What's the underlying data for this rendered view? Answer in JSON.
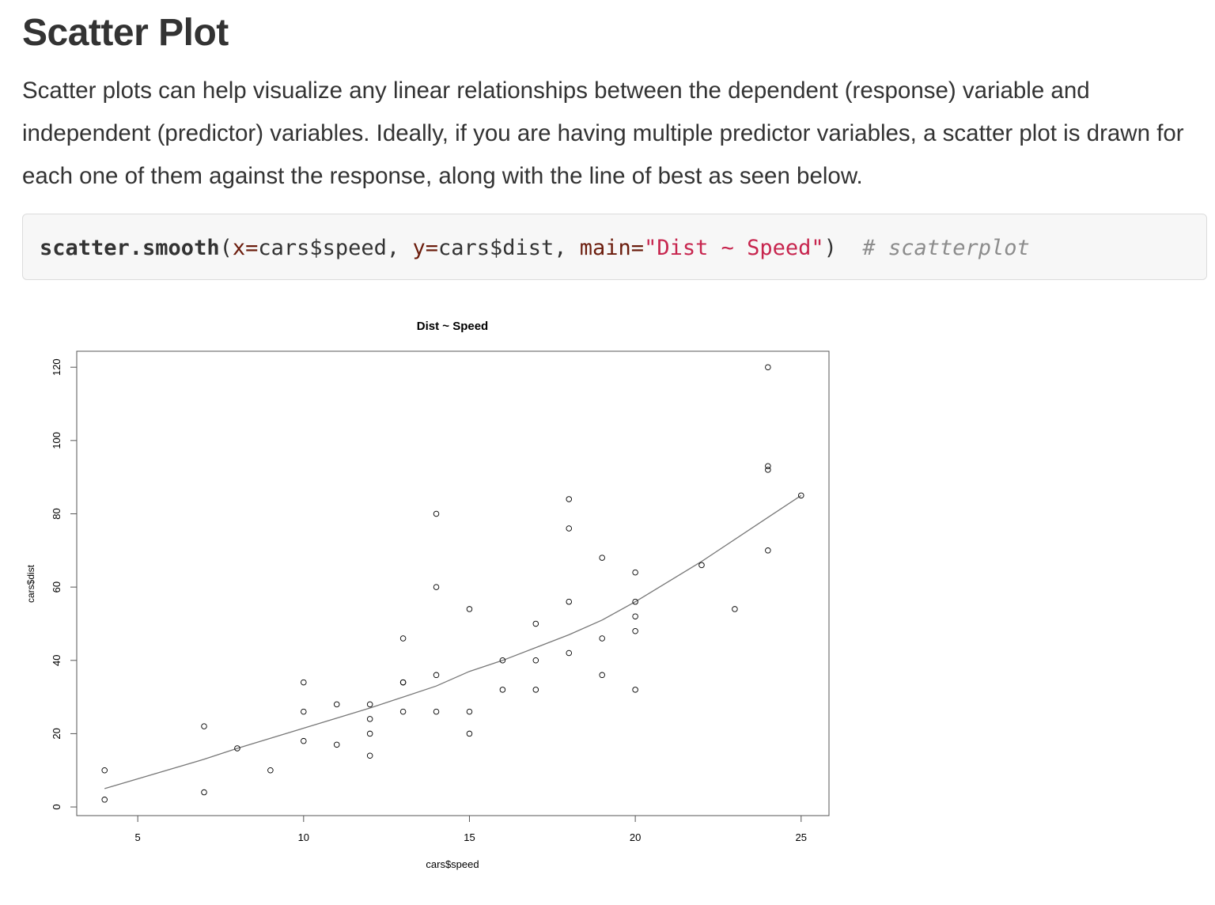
{
  "page": {
    "title": "Scatter Plot",
    "intro": "Scatter plots can help visualize any linear relationships between the dependent (response) variable and independent (predictor) variables. Ideally, if you are having multiple predictor variables, a scatter plot is drawn for each one of them against the response, along with the line of best as seen below."
  },
  "code": {
    "function": "scatter.smooth",
    "open_paren": "(",
    "arg_x_name": "x=",
    "arg_x_value": "cars$speed",
    "sep1": ", ",
    "arg_y_name": "y=",
    "arg_y_value": "cars$dist",
    "sep2": ", ",
    "arg_main_name": "main=",
    "arg_main_value": "\"Dist ~ Speed\"",
    "close_paren": ")",
    "gap": "  ",
    "comment": "# scatterplot"
  },
  "colors": {
    "code_background": "#f7f7f7",
    "code_keyword": "#6b1c0c",
    "code_string": "#c7254e",
    "code_comment": "#8c8c8c",
    "point_stroke": "#000000",
    "smooth_line": "#777777"
  },
  "chart_data": {
    "type": "scatter",
    "title": "Dist ~ Speed",
    "xlabel": "cars$speed",
    "ylabel": "cars$dist",
    "xlim": [
      3.16,
      25.84
    ],
    "ylim": [
      -2.36,
      124.36
    ],
    "xticks": [
      5,
      10,
      15,
      20,
      25
    ],
    "yticks": [
      0,
      20,
      40,
      60,
      80,
      100,
      120
    ],
    "grid": false,
    "points": {
      "x": [
        4,
        4,
        7,
        7,
        8,
        9,
        10,
        10,
        10,
        11,
        11,
        12,
        12,
        12,
        12,
        13,
        13,
        13,
        13,
        14,
        14,
        14,
        14,
        15,
        15,
        15,
        16,
        16,
        17,
        17,
        17,
        18,
        18,
        18,
        18,
        19,
        19,
        19,
        20,
        20,
        20,
        20,
        20,
        22,
        23,
        24,
        24,
        24,
        24,
        25
      ],
      "y": [
        2,
        10,
        4,
        22,
        16,
        10,
        18,
        26,
        34,
        17,
        28,
        14,
        20,
        24,
        28,
        26,
        34,
        34,
        46,
        26,
        36,
        60,
        80,
        20,
        26,
        54,
        32,
        40,
        32,
        40,
        50,
        42,
        56,
        76,
        84,
        36,
        46,
        68,
        32,
        48,
        52,
        56,
        64,
        66,
        54,
        70,
        92,
        93,
        120,
        85
      ]
    },
    "smooth": {
      "x": [
        4,
        7,
        8,
        10,
        12,
        14,
        15,
        16,
        17,
        18,
        19,
        20,
        22,
        24,
        25
      ],
      "y": [
        5,
        13,
        16,
        21.5,
        27,
        33,
        37,
        40,
        43.5,
        47,
        51,
        56,
        67,
        79,
        85
      ]
    }
  }
}
